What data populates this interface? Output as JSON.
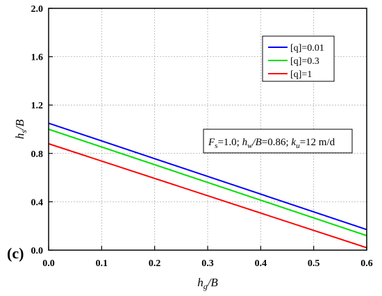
{
  "chart_data": {
    "type": "line",
    "panel_label": "(c)",
    "xlabel": "h_g/B",
    "ylabel": "h_s/B",
    "xlim": [
      0.0,
      0.6
    ],
    "ylim": [
      0.0,
      2.0
    ],
    "xticks": [
      "0.0",
      "0.1",
      "0.2",
      "0.3",
      "0.4",
      "0.5",
      "0.6"
    ],
    "yticks": [
      "0.0",
      "0.4",
      "0.8",
      "1.2",
      "1.6",
      "2.0"
    ],
    "grid": true,
    "legend_position": "top-right",
    "series": [
      {
        "name": "[q]=0.01",
        "color": "#0000ff",
        "x": [
          0.0,
          0.6
        ],
        "y": [
          1.05,
          0.17
        ]
      },
      {
        "name": "[q]=0.3",
        "color": "#00e000",
        "x": [
          0.0,
          0.6
        ],
        "y": [
          1.0,
          0.12
        ]
      },
      {
        "name": "[q]=1",
        "color": "#ff0000",
        "x": [
          0.0,
          0.6
        ],
        "y": [
          0.88,
          0.02
        ]
      }
    ],
    "annotation": "Fs=1.0; hw/B=0.86; ku=12 m/d"
  }
}
